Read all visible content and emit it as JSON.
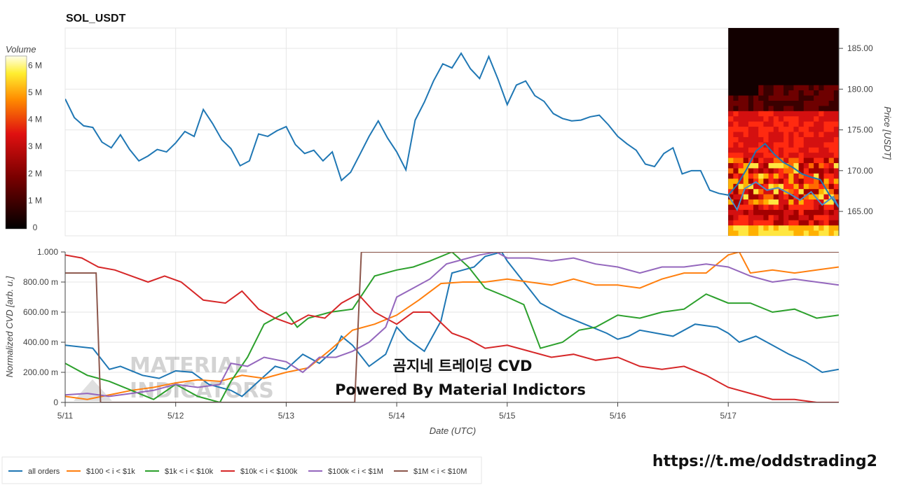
{
  "chart_data": [
    {
      "type": "line",
      "title": "SOL_USDT",
      "xlabel": "",
      "ylabel": "Price [USDT]",
      "ylim": [
        162,
        187.5
      ],
      "y_ticks": [
        "165.00",
        "170.00",
        "175.00",
        "180.00",
        "185.00"
      ],
      "x_ticks": [
        "5/11",
        "5/12",
        "5/13",
        "5/14",
        "5/15",
        "5/16",
        "5/17"
      ],
      "colorbar": {
        "label": "Volume",
        "ticks": [
          "0",
          "1 M",
          "2 M",
          "3 M",
          "4 M",
          "5 M",
          "6 M"
        ]
      },
      "heatmap_overlay": {
        "x_range": [
          "5/17",
          "5/17 23:00"
        ],
        "y_range": [
          162,
          187.5
        ]
      },
      "series": [
        {
          "name": "all orders",
          "color": "#1f77b4",
          "x": [
            0,
            0.083,
            0.167,
            0.25,
            0.333,
            0.417,
            0.5,
            0.583,
            0.667,
            0.75,
            0.833,
            0.917,
            1,
            1.083,
            1.167,
            1.25,
            1.333,
            1.417,
            1.5,
            1.583,
            1.667,
            1.75,
            1.833,
            1.917,
            2,
            2.083,
            2.167,
            2.25,
            2.333,
            2.417,
            2.5,
            2.583,
            2.667,
            2.75,
            2.833,
            2.917,
            3,
            3.083,
            3.167,
            3.25,
            3.333,
            3.417,
            3.5,
            3.583,
            3.667,
            3.75,
            3.833,
            3.917,
            4,
            4.083,
            4.167,
            4.25,
            4.333,
            4.417,
            4.5,
            4.583,
            4.667,
            4.75,
            4.833,
            4.917,
            5,
            5.083,
            5.167,
            5.25,
            5.333,
            5.417,
            5.5,
            5.583,
            5.667,
            5.75,
            5.833,
            5.917,
            6,
            6.083,
            6.167,
            6.25,
            6.333,
            6.417,
            6.5,
            6.583,
            6.667,
            6.75,
            6.833,
            6.917,
            7
          ],
          "y": [
            178.8,
            176.5,
            175.5,
            175.3,
            173.5,
            172.8,
            174.4,
            172.6,
            171.2,
            171.8,
            172.6,
            172.3,
            173.4,
            174.8,
            174.2,
            177.5,
            175.8,
            173.8,
            172.7,
            170.6,
            171.2,
            174.5,
            174.2,
            174.9,
            175.4,
            173.2,
            172.1,
            172.5,
            171.2,
            172.3,
            168.8,
            169.8,
            172.0,
            174.2,
            176.1,
            174.0,
            172.3,
            170.1,
            176.2,
            178.4,
            181.0,
            183.1,
            182.6,
            184.4,
            182.5,
            181.3,
            184.0,
            181.2,
            178.1,
            180.5,
            181.0,
            179.2,
            178.5,
            177.0,
            176.4,
            176.1,
            176.2,
            176.6,
            176.8,
            175.6,
            174.2,
            173.3,
            172.5,
            170.8,
            170.5,
            172.1,
            172.8,
            169.6,
            170.0,
            170.0,
            167.6,
            167.2,
            167.0,
            168.3,
            170.2,
            172.4,
            173.3,
            172.0,
            171.0,
            170.4,
            169.6,
            169.2,
            168.9,
            167.0,
            165.5
          ],
          "x_units": "days since 5/11"
        }
      ]
    },
    {
      "type": "line",
      "title": "",
      "xlabel": "Date (UTC)",
      "ylabel": "Normalized CVD [arb. u.]",
      "ylim": [
        0,
        1
      ],
      "y_ticks": [
        "0",
        "200.00 m",
        "400.00 m",
        "600.00 m",
        "800.00 m",
        "1.000"
      ],
      "x_ticks": [
        "5/11",
        "5/12",
        "5/13",
        "5/14",
        "5/15",
        "5/16",
        "5/17"
      ],
      "legend_position": "bottom",
      "series": [
        {
          "name": "all orders",
          "color": "#1f77b4",
          "x": [
            0,
            0.25,
            0.4,
            0.5,
            0.7,
            0.85,
            1,
            1.15,
            1.3,
            1.5,
            1.6,
            1.75,
            1.9,
            2,
            2.15,
            2.3,
            2.45,
            2.5,
            2.6,
            2.75,
            2.9,
            3,
            3.1,
            3.25,
            3.4,
            3.5,
            3.6,
            3.7,
            3.8,
            3.95,
            4,
            4.15,
            4.3,
            4.5,
            4.7,
            4.9,
            5,
            5.1,
            5.2,
            5.35,
            5.5,
            5.7,
            5.9,
            6,
            6.1,
            6.25,
            6.4,
            6.55,
            6.7,
            6.85,
            7
          ],
          "y": [
            0.38,
            0.36,
            0.22,
            0.24,
            0.18,
            0.16,
            0.21,
            0.2,
            0.12,
            0.08,
            0.04,
            0.14,
            0.24,
            0.22,
            0.32,
            0.26,
            0.36,
            0.44,
            0.38,
            0.24,
            0.32,
            0.5,
            0.42,
            0.34,
            0.54,
            0.86,
            0.88,
            0.9,
            0.97,
            1.0,
            0.94,
            0.8,
            0.66,
            0.58,
            0.52,
            0.46,
            0.42,
            0.44,
            0.48,
            0.46,
            0.44,
            0.52,
            0.5,
            0.46,
            0.4,
            0.44,
            0.38,
            0.32,
            0.27,
            0.2,
            0.22
          ]
        },
        {
          "name": "$100 < i < $1k",
          "color": "#ff7f0e",
          "x": [
            0,
            0.2,
            0.4,
            0.6,
            0.8,
            1,
            1.2,
            1.4,
            1.6,
            1.8,
            2,
            2.2,
            2.4,
            2.6,
            2.8,
            3,
            3.2,
            3.4,
            3.6,
            3.8,
            4,
            4.2,
            4.4,
            4.6,
            4.8,
            5,
            5.2,
            5.4,
            5.6,
            5.8,
            6,
            6.1,
            6.2,
            6.4,
            6.6,
            6.8,
            7
          ],
          "y": [
            0.04,
            0.02,
            0.05,
            0.08,
            0.1,
            0.13,
            0.15,
            0.14,
            0.18,
            0.16,
            0.2,
            0.23,
            0.35,
            0.48,
            0.52,
            0.58,
            0.68,
            0.79,
            0.8,
            0.8,
            0.82,
            0.8,
            0.78,
            0.82,
            0.78,
            0.78,
            0.76,
            0.82,
            0.86,
            0.86,
            0.98,
            1.0,
            0.86,
            0.88,
            0.86,
            0.88,
            0.9
          ]
        },
        {
          "name": "$1k < i < $10k",
          "color": "#2ca02c",
          "x": [
            0,
            0.2,
            0.4,
            0.6,
            0.8,
            1,
            1.2,
            1.4,
            1.5,
            1.65,
            1.8,
            2,
            2.1,
            2.2,
            2.4,
            2.6,
            2.8,
            3,
            3.15,
            3.3,
            3.5,
            3.65,
            3.8,
            4,
            4.15,
            4.3,
            4.5,
            4.65,
            4.8,
            5,
            5.2,
            5.4,
            5.6,
            5.8,
            6,
            6.2,
            6.4,
            6.6,
            6.8,
            7
          ],
          "y": [
            0.26,
            0.18,
            0.14,
            0.08,
            0.02,
            0.12,
            0.04,
            0.0,
            0.14,
            0.3,
            0.52,
            0.6,
            0.5,
            0.56,
            0.6,
            0.62,
            0.84,
            0.88,
            0.9,
            0.94,
            1.0,
            0.9,
            0.76,
            0.7,
            0.65,
            0.36,
            0.4,
            0.48,
            0.5,
            0.58,
            0.56,
            0.6,
            0.62,
            0.72,
            0.66,
            0.66,
            0.6,
            0.62,
            0.56,
            0.58
          ]
        },
        {
          "name": "$10k < i < $100k",
          "color": "#d62728",
          "x": [
            0,
            0.15,
            0.3,
            0.45,
            0.6,
            0.75,
            0.9,
            1.05,
            1.25,
            1.45,
            1.6,
            1.75,
            1.9,
            2.05,
            2.2,
            2.35,
            2.5,
            2.65,
            2.8,
            3,
            3.15,
            3.3,
            3.5,
            3.65,
            3.8,
            4,
            4.2,
            4.4,
            4.6,
            4.8,
            5,
            5.2,
            5.4,
            5.6,
            5.8,
            6,
            6.2,
            6.4,
            6.6,
            6.8,
            7
          ],
          "y": [
            0.98,
            0.96,
            0.9,
            0.88,
            0.84,
            0.8,
            0.84,
            0.8,
            0.68,
            0.66,
            0.74,
            0.62,
            0.56,
            0.52,
            0.58,
            0.56,
            0.66,
            0.72,
            0.6,
            0.52,
            0.6,
            0.6,
            0.46,
            0.42,
            0.36,
            0.38,
            0.34,
            0.3,
            0.32,
            0.28,
            0.3,
            0.24,
            0.22,
            0.24,
            0.18,
            0.1,
            0.06,
            0.02,
            0.02,
            0.0,
            0.0
          ]
        },
        {
          "name": "$100k < i < $1M",
          "color": "#9467bd",
          "x": [
            0,
            0.2,
            0.4,
            0.6,
            0.8,
            1,
            1.2,
            1.4,
            1.5,
            1.65,
            1.8,
            2,
            2.15,
            2.3,
            2.45,
            2.6,
            2.75,
            2.9,
            3,
            3.15,
            3.3,
            3.45,
            3.6,
            3.75,
            3.9,
            4,
            4.2,
            4.4,
            4.6,
            4.8,
            5,
            5.2,
            5.4,
            5.6,
            5.8,
            6,
            6.2,
            6.4,
            6.6,
            6.8,
            7
          ],
          "y": [
            0.05,
            0.06,
            0.04,
            0.06,
            0.08,
            0.12,
            0.1,
            0.12,
            0.26,
            0.24,
            0.3,
            0.27,
            0.2,
            0.3,
            0.3,
            0.34,
            0.4,
            0.5,
            0.7,
            0.76,
            0.82,
            0.92,
            0.95,
            0.98,
            1.0,
            0.96,
            0.96,
            0.94,
            0.96,
            0.92,
            0.9,
            0.86,
            0.9,
            0.9,
            0.92,
            0.9,
            0.84,
            0.8,
            0.82,
            0.8,
            0.78
          ]
        },
        {
          "name": "$1M < i < $10M",
          "color": "#8c564b",
          "x": [
            0,
            0.28,
            0.32,
            2.62,
            2.68,
            7
          ],
          "y": [
            0.86,
            0.86,
            0.0,
            0.0,
            1.0,
            1.0
          ]
        }
      ]
    }
  ],
  "watermark": {
    "korean": "곰지네 트레이딩 CVD",
    "powered": "Powered By Material Indictors",
    "logo_text": "MATERIAL"
  },
  "footer": {
    "link": "https://t.me/oddstrading2"
  }
}
